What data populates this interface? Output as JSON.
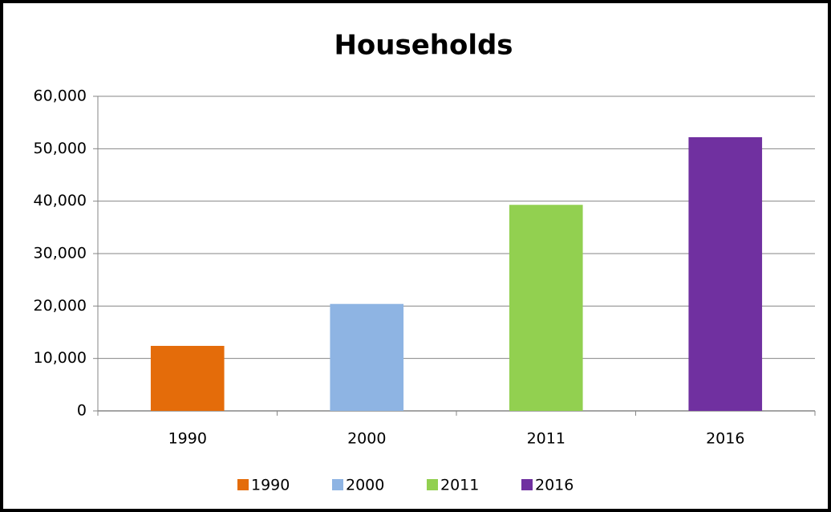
{
  "chart_data": {
    "type": "bar",
    "title": "Households",
    "categories": [
      "1990",
      "2000",
      "2011",
      "2016"
    ],
    "values": [
      12400,
      20400,
      39300,
      52200
    ],
    "colors": [
      "#e46c0a",
      "#8eb4e3",
      "#92d050",
      "#7030a0"
    ],
    "ylim": [
      0,
      60000
    ],
    "yticks": [
      0,
      {
        "value": 10000,
        "label": "10,000"
      },
      {
        "value": 20000,
        "label": "20,000"
      },
      {
        "value": 30000,
        "label": "30,000"
      },
      {
        "value": 40000,
        "label": "40,000"
      },
      {
        "value": 50000,
        "label": "50,000"
      },
      {
        "value": 60000,
        "label": "60,000"
      }
    ],
    "grid": true,
    "legend": "bottom"
  }
}
